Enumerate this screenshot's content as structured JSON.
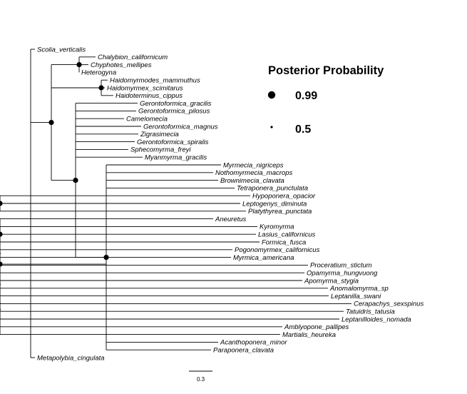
{
  "legend": {
    "title": "Posterior Probability",
    "items": [
      {
        "label": "0.99",
        "pp": 0.99
      },
      {
        "label": "0.5",
        "pp": 0.5
      }
    ]
  },
  "scale_bar": {
    "label": "0.3",
    "length": 0.3
  },
  "tree": {
    "pp": 0.99,
    "children": [
      {
        "name": "Scolia_verticalis"
      },
      {
        "pp": 0.99,
        "children": [
          {
            "pp": 0.99,
            "children": [
              {
                "name": "Chalybion_californicum"
              },
              {
                "name": "Chyphotes_mellipes"
              },
              {
                "name": "Heterogyna"
              }
            ]
          },
          {
            "pp": 0.99,
            "children": [
              {
                "name": "Haidomyrmodes_mammuthus"
              },
              {
                "name": "Haidomyrmex_scimitarus"
              },
              {
                "name": "Haidoterminus_cippus"
              }
            ]
          },
          {
            "pp": 0.99,
            "children": [
              {
                "name": "Gerontoformica_gracilis"
              },
              {
                "name": "Gerontoformica_pilosus"
              },
              {
                "name": "Camelomecia"
              },
              {
                "name": "Gerontoformica_magnus"
              },
              {
                "name": "Zigrasimecia"
              },
              {
                "name": "Gerontoformica_spiralis"
              },
              {
                "name": "Sphecomyrma_freyi"
              },
              {
                "name": "Myanmyrma_gracilis"
              },
              {
                "pp": 0.99,
                "children": [
                  {
                    "name": "Myrmecia_nigriceps"
                  },
                  {
                    "name": "Nothomyrmecia_macrops"
                  },
                  {
                    "name": "Brownimecia_clavata"
                  },
                  {
                    "name": "Tetraponera_punctulata"
                  },
                  {
                    "pp": 0.99,
                    "children": [
                      {
                        "name": "Hypoponera_opacior"
                      },
                      {
                        "name": "Leptogenys_diminuta"
                      },
                      {
                        "name": "Platythyrea_punctata"
                      }
                    ]
                  },
                  {
                    "pp": 0.99,
                    "children": [
                      {
                        "name": "Aneuretus"
                      },
                      {
                        "pp": 0.99,
                        "children": [
                          {
                            "name": "Kyromyrma"
                          },
                          {
                            "name": "Lasius_californicus"
                          },
                          {
                            "name": "Formica_fusca"
                          }
                        ]
                      },
                      {
                        "pp": 0.5,
                        "children": [
                          {
                            "name": "Pogonomyrmex_californicus"
                          },
                          {
                            "name": "Myrmica_americana"
                          }
                        ]
                      },
                      {
                        "pp": 0.5,
                        "children": [
                          {
                            "pp": 0.5,
                            "children": [
                              {
                                "name": "Proceratium_stictum"
                              },
                              {
                                "name": "Opamyrma_hungvuong"
                              },
                              {
                                "name": "Apomyrma_stygia"
                              },
                              {
                                "pp": 0.5,
                                "children": [
                                  {
                                    "name": "Anomalomyrma_sp"
                                  },
                                  {
                                    "name": "Leptanilla_swani"
                                  },
                                  {
                                    "name": "Cerapachys_sexspinus"
                                  },
                                  {
                                    "name": "Tatuidris_tatusia"
                                  },
                                  {
                                    "name": "Leptanilloides_nomada"
                                  }
                                ]
                              }
                            ]
                          },
                          {
                            "name": "Amblyopone_pallipes"
                          },
                          {
                            "name": "Martialis_heureka"
                          }
                        ]
                      }
                    ]
                  },
                  {
                    "name": "Acanthoponera_minor"
                  },
                  {
                    "name": "Paraponera_clavata"
                  }
                ]
              }
            ]
          }
        ]
      },
      {
        "name": "Metapolybia_cingulata"
      }
    ]
  }
}
